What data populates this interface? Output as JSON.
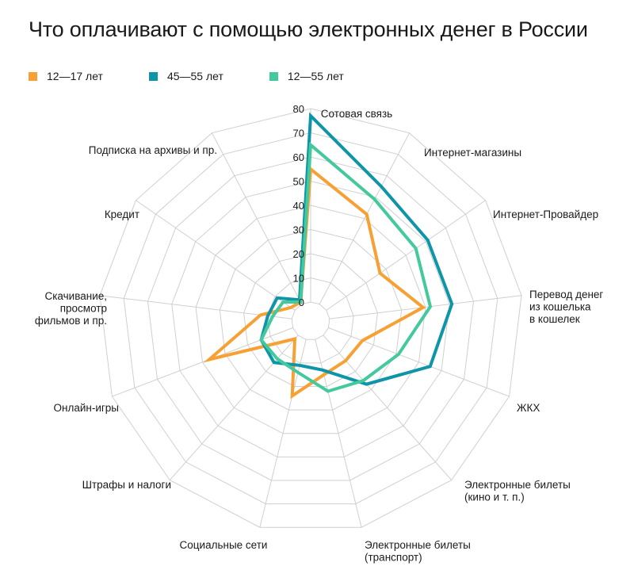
{
  "title": "Что оплачивают с помощью электронных денег в России",
  "chart_data": {
    "type": "radar",
    "title": "Что оплачивают с помощью электронных денег в России",
    "categories": [
      "Сотовая связь",
      "Интернет-магазины",
      "Интернет-Провайдер",
      "Перевод денег из кошелька в кошелек",
      "ЖКХ",
      "Электронные билеты (кино и т. п.)",
      "Электронные билеты (транспорт)",
      "Социальные сети",
      "Штрафы и налоги",
      "Онлайн-игры",
      "Скачивание, просмотр фильмов и пр.",
      "Кредит",
      "Подписка на архивы и пр."
    ],
    "category_lines": [
      [
        "Сотовая связь"
      ],
      [
        "Интернет-магазины"
      ],
      [
        "Интернет-Провайдер"
      ],
      [
        "Перевод денег",
        "из кошелька",
        "в кошелек"
      ],
      [
        "ЖКХ"
      ],
      [
        "Электронные билеты",
        "(кино и т. п.)"
      ],
      [
        "Электронные билеты",
        "(транспорт)"
      ],
      [
        "Социальные сети"
      ],
      [
        "Штрафы и налоги"
      ],
      [
        "Онлайн-игры"
      ],
      [
        "Скачивание,",
        "просмотр",
        "фильмов и пр."
      ],
      [
        "Кредит"
      ],
      [
        "Подписка на архивы и пр."
      ]
    ],
    "series": [
      {
        "name": "12—17 лет",
        "color": "#f7a135",
        "values": [
          55,
          42,
          27,
          39,
          15,
          14,
          15,
          24,
          2,
          37,
          13,
          2,
          1
        ]
      },
      {
        "name": "45—55 лет",
        "color": "#0f95a8",
        "values": [
          77,
          55,
          51,
          51,
          45,
          27,
          13,
          11,
          15,
          14,
          10,
          9,
          2
        ]
      },
      {
        "name": "12—55 лет",
        "color": "#44c99e",
        "values": [
          65,
          49,
          45,
          42,
          31,
          25,
          22,
          14,
          13,
          14,
          8,
          6,
          1
        ]
      }
    ],
    "rlim": [
      0,
      80
    ],
    "rticks": [
      "0",
      "10",
      "20",
      "30",
      "40",
      "50",
      "60",
      "70",
      "80"
    ],
    "grid": true,
    "legend_position": "top-left"
  }
}
